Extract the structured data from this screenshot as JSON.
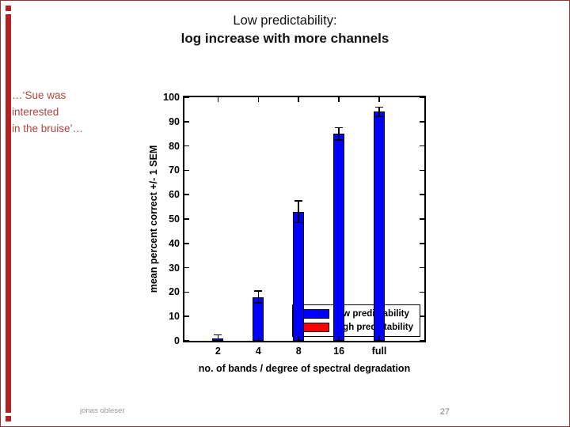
{
  "slide": {
    "title_lines": [
      "Low predictability:",
      "log increase with more channels"
    ],
    "sentence_lines": [
      "…‘Sue was",
      "interested",
      "in the bruise’…"
    ],
    "footer": "jonas obleser",
    "page_number": "27"
  },
  "colors": {
    "border_red": "#993333",
    "stripe_red": "#b22222",
    "text_red": "#b0453c",
    "bar_blue": "#0000ff",
    "legend_red": "#ff0000"
  },
  "chart_data": {
    "type": "bar",
    "categories": [
      "2",
      "4",
      "8",
      "16",
      "full"
    ],
    "series": [
      {
        "name": "low predictability",
        "color": "#0000ff",
        "values": [
          1,
          18,
          53,
          85,
          94
        ],
        "errors": [
          1.5,
          2.5,
          4.5,
          2.5,
          2
        ]
      },
      {
        "name": "high predictability",
        "color": "#ff0000",
        "values": [],
        "errors": []
      }
    ],
    "title": "",
    "xlabel": "no. of bands / degree of spectral degradation",
    "ylabel": "mean percent correct +/- 1 SEM",
    "ylim": [
      0,
      100
    ],
    "yticks": [
      0,
      10,
      20,
      30,
      40,
      50,
      60,
      70,
      80,
      90,
      100
    ],
    "grid": false,
    "legend_position": "lower-right"
  }
}
